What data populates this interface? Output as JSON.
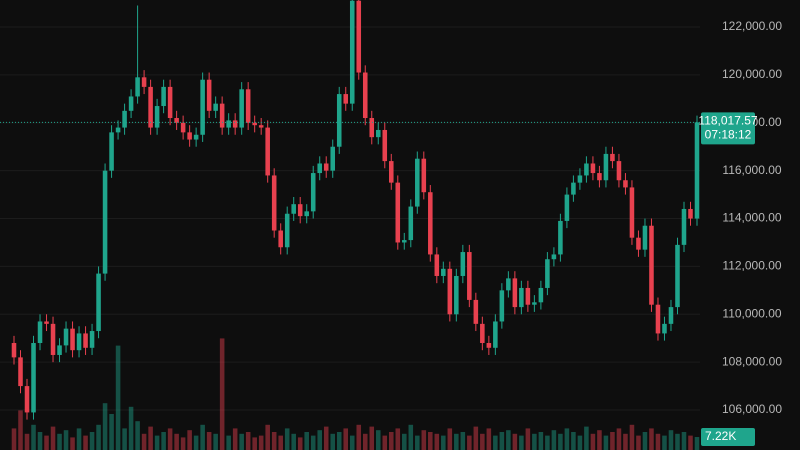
{
  "chart_data": {
    "type": "candlestick",
    "opens": [
      108800,
      108200,
      107000,
      105900,
      108800,
      109700,
      109600,
      108300,
      108700,
      109400,
      108500,
      109200,
      108600,
      109300,
      111700,
      116000,
      117600,
      117800,
      118500,
      119100,
      119900,
      119500,
      117800,
      118700,
      119500,
      118200,
      118000,
      117600,
      117300,
      117500,
      119800,
      118500,
      118800,
      117800,
      118100,
      117800,
      119400,
      118000,
      117900,
      117800,
      115800,
      113500,
      112800,
      114200,
      114600,
      114100,
      114300,
      115900,
      116300,
      116000,
      117000,
      119200,
      118800,
      123100,
      120100,
      118200,
      117400,
      117700,
      116400,
      115500,
      113000,
      113100,
      114500,
      116500,
      115100,
      112500,
      111600,
      111900,
      110000,
      111600,
      112600,
      110600,
      109600,
      108800,
      108600,
      109700,
      111000,
      111500,
      110300,
      111100,
      110400,
      110500,
      111100,
      112300,
      112500,
      113900,
      115000,
      115500,
      115800,
      116300,
      115900,
      115600,
      116700,
      116400,
      115600,
      115300,
      113200,
      112700,
      113700,
      110400,
      109200,
      109600,
      110300,
      112900,
      114400,
      114000
    ],
    "highs": [
      109100,
      108500,
      107300,
      109100,
      110000,
      110000,
      109900,
      109000,
      109700,
      109700,
      109500,
      109500,
      109600,
      112000,
      116300,
      117900,
      118100,
      118800,
      119400,
      122900,
      120200,
      119800,
      119000,
      119800,
      119800,
      118500,
      118300,
      117900,
      117800,
      120100,
      120100,
      119100,
      119100,
      118400,
      118400,
      119700,
      119700,
      118300,
      118200,
      118100,
      116100,
      113800,
      114500,
      114900,
      114900,
      114600,
      116200,
      116600,
      116600,
      117300,
      119500,
      119500,
      123400,
      123400,
      120400,
      118500,
      118000,
      118000,
      116700,
      115800,
      113400,
      114800,
      116800,
      116800,
      115400,
      112800,
      112200,
      112200,
      111900,
      112900,
      112900,
      110900,
      109900,
      109100,
      110000,
      111300,
      111800,
      111800,
      111400,
      111400,
      110800,
      111400,
      112600,
      112800,
      114200,
      115300,
      115800,
      116100,
      116600,
      116600,
      116200,
      117000,
      117000,
      116700,
      115900,
      115600,
      113500,
      114000,
      114000,
      110700,
      109900,
      110600,
      113200,
      114700,
      114700,
      118300
    ],
    "lows": [
      107900,
      106700,
      105600,
      105600,
      108500,
      109300,
      108000,
      108000,
      108400,
      108200,
      108200,
      108300,
      108300,
      109000,
      111400,
      115700,
      117300,
      117500,
      118200,
      118800,
      119200,
      117500,
      117500,
      118400,
      117900,
      117700,
      117300,
      117000,
      117000,
      117200,
      118200,
      118200,
      117500,
      117500,
      117500,
      117500,
      117700,
      117600,
      117500,
      115500,
      113200,
      112500,
      112500,
      113900,
      113800,
      113800,
      114000,
      115600,
      115700,
      115700,
      116700,
      118500,
      118500,
      119800,
      117900,
      117100,
      117100,
      116100,
      115200,
      112700,
      112700,
      112800,
      114200,
      114800,
      112200,
      111300,
      111300,
      109700,
      109700,
      111300,
      110300,
      109300,
      108500,
      108300,
      108300,
      109400,
      110700,
      110000,
      110000,
      110100,
      110100,
      110200,
      110800,
      112000,
      112200,
      113600,
      114700,
      115200,
      115500,
      115600,
      115300,
      115300,
      116100,
      115300,
      115000,
      112900,
      112400,
      112400,
      110100,
      108900,
      108900,
      109300,
      110000,
      112600,
      113700,
      113700
    ],
    "closes": [
      108200,
      107000,
      105900,
      108800,
      109700,
      109600,
      108300,
      108700,
      109400,
      108500,
      109200,
      108600,
      109300,
      111700,
      116000,
      117600,
      117800,
      118500,
      119100,
      119900,
      119500,
      117800,
      118700,
      119500,
      118200,
      118000,
      117600,
      117300,
      117500,
      119800,
      118500,
      118800,
      117800,
      118100,
      117800,
      119400,
      118000,
      117900,
      117800,
      115800,
      113500,
      112800,
      114200,
      114600,
      114100,
      114300,
      115900,
      116300,
      116000,
      117000,
      119200,
      118800,
      123100,
      120100,
      118200,
      117400,
      117700,
      116400,
      115500,
      113000,
      113100,
      114500,
      116500,
      115100,
      112500,
      111600,
      111900,
      110000,
      111600,
      112600,
      110600,
      109600,
      108800,
      108600,
      109700,
      111000,
      111500,
      110300,
      111100,
      110400,
      110500,
      111100,
      112300,
      112500,
      113900,
      115000,
      115500,
      115800,
      116300,
      115900,
      115600,
      116700,
      116400,
      115600,
      115300,
      113200,
      112700,
      113700,
      110400,
      109200,
      109600,
      110300,
      112900,
      114400,
      114000,
      118017.57
    ],
    "volumes": [
      12,
      22,
      9,
      14,
      10,
      8,
      13,
      9,
      11,
      7,
      12,
      8,
      10,
      14,
      26,
      20,
      58,
      12,
      24,
      16,
      9,
      13,
      8,
      10,
      12,
      9,
      7,
      11,
      8,
      14,
      10,
      9,
      62,
      8,
      12,
      9,
      10,
      7,
      8,
      14,
      10,
      8,
      12,
      9,
      7,
      10,
      8,
      11,
      13,
      9,
      10,
      12,
      8,
      14,
      9,
      13,
      11,
      8,
      10,
      12,
      9,
      14,
      8,
      11,
      10,
      9,
      8,
      12,
      9,
      10,
      8,
      13,
      9,
      12,
      8,
      10,
      11,
      9,
      8,
      12,
      9,
      10,
      8,
      11,
      9,
      12,
      10,
      8,
      13,
      9,
      11,
      8,
      10,
      12,
      9,
      14,
      8,
      10,
      12,
      9,
      8,
      11,
      9,
      10,
      8,
      7.22
    ],
    "volume_labels": {
      "105": "7.22K"
    },
    "ylim": [
      104330,
      123130
    ],
    "vlim": [
      0,
      250
    ],
    "yticks": [
      {
        "value": 106000,
        "label": "106,000.00"
      },
      {
        "value": 108000,
        "label": "108,000.00"
      },
      {
        "value": 110000,
        "label": "110,000.00"
      },
      {
        "value": 112000,
        "label": "112,000.00"
      },
      {
        "value": 114000,
        "label": "114,000.00"
      },
      {
        "value": 116000,
        "label": "116,000.00"
      },
      {
        "value": 118000,
        "label": "118,000.00"
      },
      {
        "value": 120000,
        "label": "120,000.00"
      },
      {
        "value": 122000,
        "label": "122,000.00"
      }
    ],
    "last_price": 118017.57,
    "last_price_label": "118,017.57",
    "countdown": "07:18:12",
    "grid": true,
    "up_color": "#1fa58c",
    "down_color": "#e8414f"
  }
}
